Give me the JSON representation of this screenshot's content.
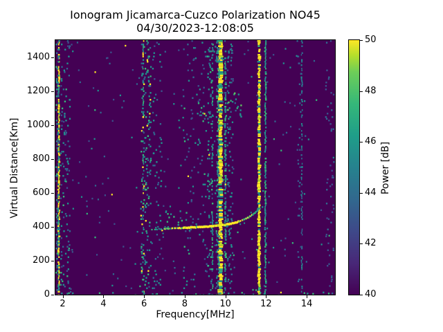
{
  "chart_data": {
    "type": "heatmap",
    "title": "Ionogram Jicamarca-Cuzco Polarization NO45",
    "subtitle": "04/30/2023-12:08:05",
    "xlabel": "Frequency[MHz]",
    "ylabel": "Virtual Distance[Km]",
    "xlim": [
      1.64,
      15.39
    ],
    "ylim": [
      0,
      1500
    ],
    "xticks": [
      2,
      4,
      6,
      8,
      10,
      12,
      14
    ],
    "yticks": [
      0,
      200,
      400,
      600,
      800,
      1000,
      1200,
      1400
    ],
    "grid": false,
    "background_color": "#440154",
    "colorbar": {
      "label": "Power [dB]",
      "min": 40,
      "max": 50,
      "ticks": [
        40,
        42,
        44,
        46,
        48,
        50
      ],
      "colormap": "viridis",
      "stops": [
        [
          0,
          "#440154"
        ],
        [
          0.125,
          "#482878"
        ],
        [
          0.25,
          "#3e4989"
        ],
        [
          0.375,
          "#31688e"
        ],
        [
          0.5,
          "#26828e"
        ],
        [
          0.625,
          "#1f9e89"
        ],
        [
          0.75,
          "#35b779"
        ],
        [
          0.875,
          "#6ece58"
        ],
        [
          0.94,
          "#b5de2b"
        ],
        [
          1,
          "#fde725"
        ]
      ]
    },
    "interference_stripes": [
      {
        "f": 1.81,
        "width": 2.5,
        "density": 0.9,
        "palette": [
          [
            "#fde725",
            0.68
          ],
          [
            "#b5de2b",
            0.08
          ],
          [
            "#35b779",
            0.1
          ],
          [
            "#21918c",
            0.14
          ]
        ]
      },
      {
        "f": 5.97,
        "width": 2.0,
        "density": 0.35,
        "palette": [
          [
            "#21918c",
            0.5
          ],
          [
            "#35b779",
            0.25
          ],
          [
            "#fde725",
            0.15
          ],
          [
            "#31688e",
            0.1
          ]
        ]
      },
      {
        "f": 9.36,
        "width": 2.0,
        "density": 0.55,
        "palette": [
          [
            "#21918c",
            0.55
          ],
          [
            "#35b779",
            0.3
          ],
          [
            "#31688e",
            0.15
          ]
        ]
      },
      {
        "f": 9.76,
        "width": 6.0,
        "density": 0.95,
        "palette": [
          [
            "#fde725",
            0.66
          ],
          [
            "#b5de2b",
            0.1
          ],
          [
            "#35b779",
            0.1
          ],
          [
            "#21918c",
            0.14
          ]
        ]
      },
      {
        "f": 10.0,
        "width": 2.5,
        "density": 0.6,
        "palette": [
          [
            "#21918c",
            0.6
          ],
          [
            "#35b779",
            0.25
          ],
          [
            "#31688e",
            0.15
          ]
        ]
      },
      {
        "f": 11.66,
        "width": 4.0,
        "density": 0.95,
        "palette": [
          [
            "#fde725",
            0.7
          ],
          [
            "#b5de2b",
            0.1
          ],
          [
            "#35b779",
            0.08
          ],
          [
            "#21918c",
            0.12
          ]
        ]
      },
      {
        "f": 11.97,
        "width": 2.2,
        "density": 0.88,
        "palette": [
          [
            "#21918c",
            0.55
          ],
          [
            "#35b779",
            0.3
          ],
          [
            "#26828e",
            0.15
          ]
        ]
      },
      {
        "f": 13.76,
        "width": 1.8,
        "density": 0.55,
        "palette": [
          [
            "#26828e",
            0.5
          ],
          [
            "#31688e",
            0.35
          ],
          [
            "#21918c",
            0.15
          ]
        ]
      }
    ],
    "noise_bands": [
      {
        "f0": 1.64,
        "f1": 1.76,
        "density": 0.3,
        "palette": [
          [
            "#21918c",
            0.5
          ],
          [
            "#31688e",
            0.3
          ],
          [
            "#35b779",
            0.2
          ]
        ]
      },
      {
        "f0": 1.86,
        "f1": 2.32,
        "density": 0.55,
        "palette": [
          [
            "#21918c",
            0.4
          ],
          [
            "#31688e",
            0.3
          ],
          [
            "#3b528b",
            0.2
          ],
          [
            "#35b779",
            0.1
          ]
        ]
      },
      {
        "f0": 5.8,
        "f1": 6.3,
        "density": 0.75,
        "palette": [
          [
            "#21918c",
            0.45
          ],
          [
            "#31688e",
            0.25
          ],
          [
            "#35b779",
            0.2
          ],
          [
            "#fde725",
            0.1
          ]
        ]
      },
      {
        "f0": 6.35,
        "f1": 6.85,
        "density": 0.3,
        "palette": [
          [
            "#21918c",
            0.45
          ],
          [
            "#31688e",
            0.35
          ],
          [
            "#3b528b",
            0.2
          ]
        ]
      },
      {
        "f0": 7.9,
        "f1": 9.05,
        "density": 0.5,
        "palette": [
          [
            "#21918c",
            0.35
          ],
          [
            "#31688e",
            0.35
          ],
          [
            "#3b528b",
            0.2
          ],
          [
            "#35b779",
            0.1
          ]
        ]
      },
      {
        "f0": 9.08,
        "f1": 9.3,
        "density": 0.3,
        "palette": [
          [
            "#21918c",
            0.5
          ],
          [
            "#31688e",
            0.3
          ],
          [
            "#35b779",
            0.2
          ]
        ]
      },
      {
        "f0": 9.52,
        "f1": 9.66,
        "density": 0.55,
        "palette": [
          [
            "#21918c",
            0.55
          ],
          [
            "#35b779",
            0.25
          ],
          [
            "#31688e",
            0.2
          ]
        ]
      },
      {
        "f0": 10.05,
        "f1": 10.35,
        "density": 0.3,
        "palette": [
          [
            "#21918c",
            0.4
          ],
          [
            "#31688e",
            0.4
          ],
          [
            "#3b528b",
            0.2
          ]
        ]
      },
      {
        "f0": 13.5,
        "f1": 13.68,
        "density": 0.18,
        "palette": [
          [
            "#31688e",
            0.6
          ],
          [
            "#3b528b",
            0.4
          ]
        ]
      },
      {
        "f0": 14.9,
        "f1": 15.3,
        "density": 0.25,
        "palette": [
          [
            "#3b528b",
            0.6
          ],
          [
            "#31688e",
            0.4
          ]
        ]
      }
    ],
    "speckle_clusters": [
      {
        "f0": 10.0,
        "f1": 10.75,
        "km0": 1050,
        "km1": 1200,
        "count": 18,
        "palette": [
          [
            "#35b779",
            0.35
          ],
          [
            "#5ec962",
            0.25
          ],
          [
            "#21918c",
            0.4
          ]
        ]
      },
      {
        "f0": 8.7,
        "f1": 9.4,
        "km0": 1000,
        "km1": 1120,
        "count": 8,
        "palette": [
          [
            "#21918c",
            0.6
          ],
          [
            "#35b779",
            0.4
          ]
        ]
      },
      {
        "f0": 6.9,
        "f1": 8.1,
        "km0": 430,
        "km1": 545,
        "count": 11,
        "palette": [
          [
            "#21918c",
            0.6
          ],
          [
            "#35b779",
            0.4
          ]
        ]
      },
      {
        "f0": 8.9,
        "f1": 10.3,
        "km0": 1380,
        "km1": 1500,
        "count": 22,
        "palette": [
          [
            "#21918c",
            0.5
          ],
          [
            "#35b779",
            0.3
          ],
          [
            "#31688e",
            0.2
          ]
        ]
      },
      {
        "f0": 9.0,
        "f1": 9.6,
        "km0": 550,
        "km1": 700,
        "count": 7,
        "palette": [
          [
            "#21918c",
            0.6
          ],
          [
            "#35b779",
            0.4
          ]
        ]
      },
      {
        "f0": 2.0,
        "f1": 15.2,
        "km0": 0,
        "km1": 18,
        "count": 30,
        "palette": [
          [
            "#21918c",
            0.4
          ],
          [
            "#35b779",
            0.3
          ],
          [
            "#31688e",
            0.3
          ]
        ]
      }
    ],
    "background_noise": {
      "count": 240,
      "palette": [
        [
          "#3b528b",
          0.35
        ],
        [
          "#31688e",
          0.25
        ],
        [
          "#21918c",
          0.25
        ],
        [
          "#35b779",
          0.12
        ],
        [
          "#fde725",
          0.03
        ]
      ]
    },
    "echo_trace": {
      "points": [
        [
          6.35,
          383
        ],
        [
          6.7,
          386
        ],
        [
          7.0,
          389
        ],
        [
          7.5,
          391
        ],
        [
          8.0,
          394
        ],
        [
          8.5,
          397
        ],
        [
          9.0,
          400
        ],
        [
          9.4,
          404
        ],
        [
          9.8,
          409
        ],
        [
          10.1,
          415
        ],
        [
          10.4,
          423
        ],
        [
          10.7,
          434
        ],
        [
          10.95,
          446
        ],
        [
          11.15,
          459
        ],
        [
          11.35,
          475
        ],
        [
          11.5,
          491
        ],
        [
          11.62,
          507
        ]
      ],
      "segments": [
        {
          "t0": 0.0,
          "t1": 0.1,
          "prob": 0.45,
          "width": 2.2,
          "palette": [
            [
              "#21918c",
              0.7
            ],
            [
              "#35b779",
              0.3
            ]
          ]
        },
        {
          "t0": 0.1,
          "t1": 0.28,
          "prob": 0.9,
          "width": 2.6,
          "palette": [
            [
              "#fde725",
              0.5
            ],
            [
              "#5ec962",
              0.25
            ],
            [
              "#21918c",
              0.25
            ]
          ]
        },
        {
          "t0": 0.28,
          "t1": 0.78,
          "prob": 1.0,
          "width": 3.4,
          "palette": [
            [
              "#fde725",
              0.85
            ],
            [
              "#b5de2b",
              0.1
            ],
            [
              "#35b779",
              0.05
            ]
          ]
        },
        {
          "t0": 0.78,
          "t1": 0.93,
          "prob": 0.95,
          "width": 2.6,
          "palette": [
            [
              "#fde725",
              0.45
            ],
            [
              "#5ec962",
              0.3
            ],
            [
              "#21918c",
              0.25
            ]
          ]
        },
        {
          "t0": 0.93,
          "t1": 1.01,
          "prob": 0.85,
          "width": 2.2,
          "palette": [
            [
              "#21918c",
              0.6
            ],
            [
              "#35b779",
              0.4
            ]
          ]
        }
      ],
      "halo_prob": 0.15
    }
  }
}
